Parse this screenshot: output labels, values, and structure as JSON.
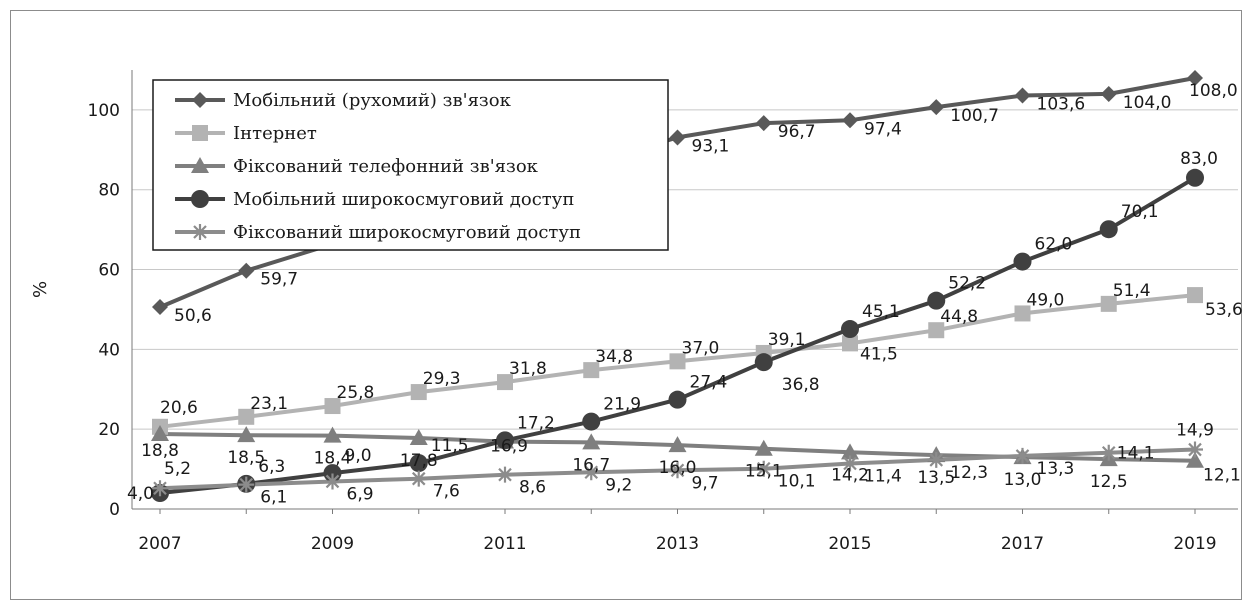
{
  "chart_data": {
    "type": "line",
    "ylabel": "%",
    "ylim": [
      0,
      110
    ],
    "yticks": [
      "0",
      "20",
      "40",
      "60",
      "80",
      "100"
    ],
    "xticks": [
      "2007",
      "2009",
      "2011",
      "2013",
      "2015",
      "2017",
      "2019"
    ],
    "x": [
      2007,
      2008,
      2009,
      2010,
      2011,
      2012,
      2013,
      2014,
      2015,
      2016,
      2017,
      2018,
      2019
    ],
    "grid": true,
    "legend_position": "top-left",
    "series": [
      {
        "name": "Мобільний (рухомий) зв'язок",
        "marker": "diamond",
        "color": "#595959",
        "values": [
          50.6,
          59.7,
          null,
          null,
          null,
          null,
          93.1,
          96.7,
          97.4,
          100.7,
          103.6,
          104.0,
          108.0
        ],
        "labels": [
          "50,6",
          "59,7",
          null,
          null,
          null,
          null,
          "93,1",
          "96,7",
          "97,4",
          "100,7",
          "103,6",
          "104,0",
          "108,0"
        ]
      },
      {
        "name": "Інтернет",
        "marker": "square",
        "color": "#b3b3b3",
        "values": [
          20.6,
          23.1,
          25.8,
          29.3,
          31.8,
          34.8,
          37.0,
          39.1,
          41.5,
          44.8,
          49.0,
          51.4,
          53.6
        ],
        "labels": [
          "20,6",
          "23,1",
          "25,8",
          "29,3",
          "31,8",
          "34,8",
          "37,0",
          "39,1",
          "41,5",
          "44,8",
          "49,0",
          "51,4",
          "53,6"
        ]
      },
      {
        "name": "Фіксований телефонний зв'язок",
        "marker": "triangle",
        "color": "#7f7f7f",
        "values": [
          18.8,
          18.5,
          18.4,
          17.8,
          16.9,
          16.7,
          16.0,
          15.1,
          14.2,
          13.5,
          13.0,
          12.5,
          12.1
        ],
        "labels": [
          "18,8",
          "18,5",
          "18,4",
          "17,8",
          "16,9",
          "16,7",
          "16,0",
          "15,1",
          "14,2",
          "13,5",
          "13,0",
          "12,5",
          "12,1"
        ]
      },
      {
        "name": "Мобільний широкосмуговий доступ",
        "marker": "circle",
        "color": "#404040",
        "values": [
          4.0,
          6.3,
          9.0,
          11.5,
          17.2,
          21.9,
          27.4,
          36.8,
          45.1,
          52.2,
          62.0,
          70.1,
          83.0
        ],
        "labels": [
          "4,0",
          "6,3",
          "9,0",
          "11,5",
          "17,2",
          "21,9",
          "27,4",
          "36,8",
          "45,1",
          "52,2",
          "62,0",
          "70,1",
          "83,0"
        ]
      },
      {
        "name": "Фіксований широкосмуговий доступ",
        "marker": "asterisk",
        "color": "#8c8c8c",
        "values": [
          5.2,
          6.1,
          6.9,
          7.6,
          8.6,
          9.2,
          9.7,
          10.1,
          11.4,
          12.3,
          13.3,
          14.1,
          14.9
        ],
        "labels": [
          "5,2",
          "6,1",
          "6,9",
          "7,6",
          "8,6",
          "9,2",
          "9,7",
          "10,1",
          "11,4",
          "12,3",
          "13,3",
          "14,1",
          "14,9"
        ]
      }
    ]
  }
}
